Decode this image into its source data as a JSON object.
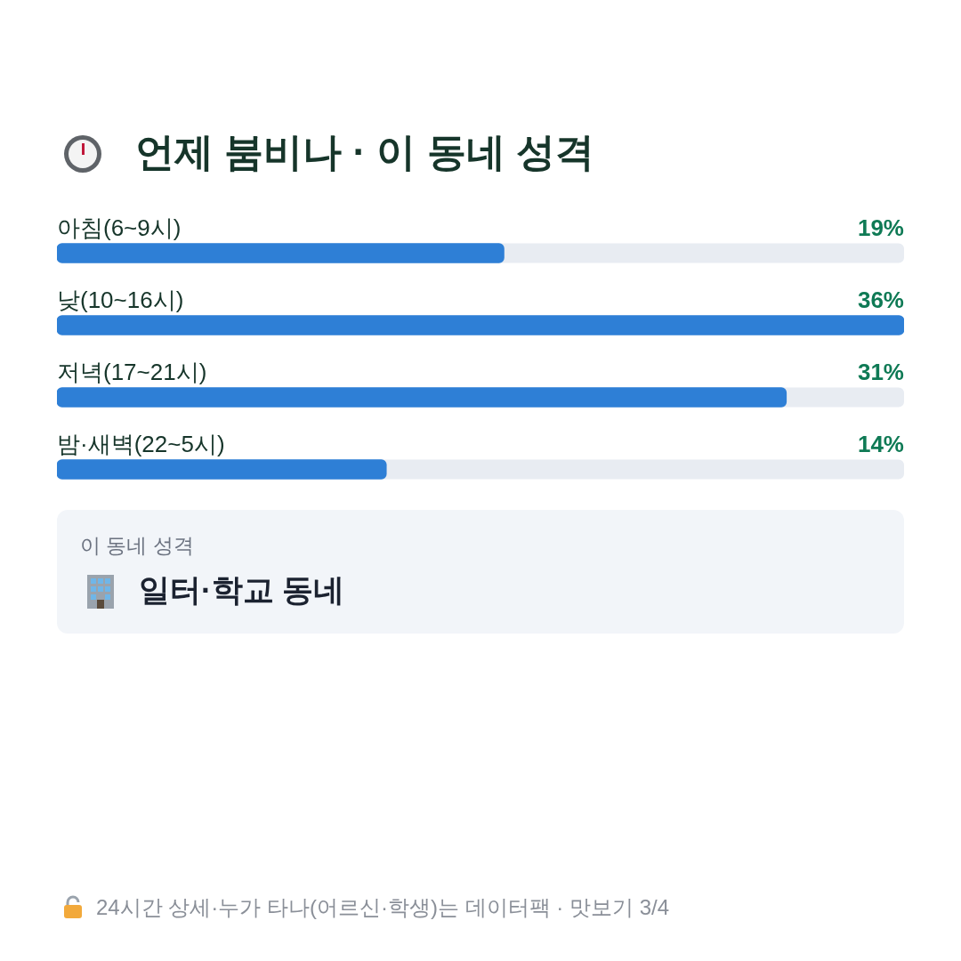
{
  "chart_data": {
    "type": "bar",
    "orientation": "horizontal",
    "title": "언제 붐비나 · 이 동네 성격",
    "categories": [
      "아침(6~9시)",
      "낮(10~16시)",
      "저녁(17~21시)",
      "밤·새벽(22~5시)"
    ],
    "values": [
      19,
      36,
      31,
      14
    ],
    "value_labels": [
      "19%",
      "36%",
      "31%",
      "14%"
    ],
    "color": "#2e7fd6",
    "xlim": [
      0,
      36
    ],
    "grid": false,
    "legend": false,
    "tick_labels": false,
    "annotations": [
      "이 동네 성격",
      "일터·학교 동네",
      "24시간 상세·누가 타나(어르신·학생)는 데이터팩 · 맛보기 3/4"
    ]
  }
}
